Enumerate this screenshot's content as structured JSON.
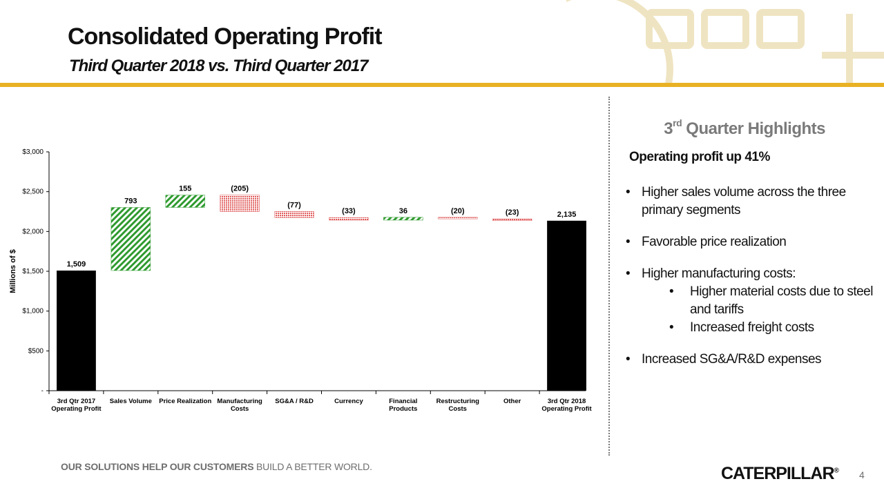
{
  "header": {
    "title": "Consolidated Operating Profit",
    "subtitle": "Third Quarter 2018 vs. Third Quarter 2017"
  },
  "colors": {
    "accent_rule": "#e9b224",
    "total_bar": "#000000",
    "increase_bar": "#2e9a2e",
    "decrease_bar": "#e05858",
    "highlight_title": "#7a7a7a"
  },
  "chart_data": {
    "type": "bar",
    "style": "waterfall",
    "ylabel": "Millions of $",
    "ylim": [
      0,
      3000
    ],
    "yticks": [
      0,
      500,
      1000,
      1500,
      2000,
      2500,
      3000
    ],
    "ytick_labels": [
      "-",
      "$500",
      "$1,000",
      "$1,500",
      "$2,000",
      "$2,500",
      "$3,000"
    ],
    "grid": false,
    "categories": [
      [
        "3rd Qtr 2017",
        "Operating Profit"
      ],
      [
        "Sales Volume"
      ],
      [
        "Price Realization"
      ],
      [
        "Manufacturing",
        "Costs"
      ],
      [
        "SG&A / R&D"
      ],
      [
        "Currency"
      ],
      [
        "Financial",
        "Products"
      ],
      [
        "Restructuring",
        "Costs"
      ],
      [
        "Other"
      ],
      [
        "3rd Qtr 2018",
        "Operating Profit"
      ]
    ],
    "values": [
      1509,
      793,
      155,
      -205,
      -77,
      -33,
      36,
      -20,
      -23,
      2135
    ],
    "kinds": [
      "total",
      "increase",
      "increase",
      "decrease",
      "decrease",
      "decrease",
      "increase",
      "decrease",
      "decrease",
      "total"
    ],
    "data_labels": [
      "1,509",
      "793",
      "155",
      "(205)",
      "(77)",
      "(33)",
      "36",
      "(20)",
      "(23)",
      "2,135"
    ]
  },
  "highlights": {
    "title_prefix": "3",
    "title_sup": "rd",
    "title_rest": " Quarter Highlights",
    "lead": "Operating profit up 41%",
    "b1": "Higher sales volume across the three primary segments",
    "b2": "Favorable price realization",
    "b3": "Higher manufacturing costs:",
    "b3a": "Higher material costs due to steel and tariffs",
    "b3b": "Increased freight costs",
    "b4": "Increased SG&A/R&D expenses"
  },
  "footer": {
    "tagline_bold": "OUR SOLUTIONS HELP OUR CUSTOMERS",
    "tagline_rest": " BUILD A BETTER WORLD.",
    "logo": "CATERPILLAR",
    "logo_mark": "®",
    "page_number": "4"
  }
}
